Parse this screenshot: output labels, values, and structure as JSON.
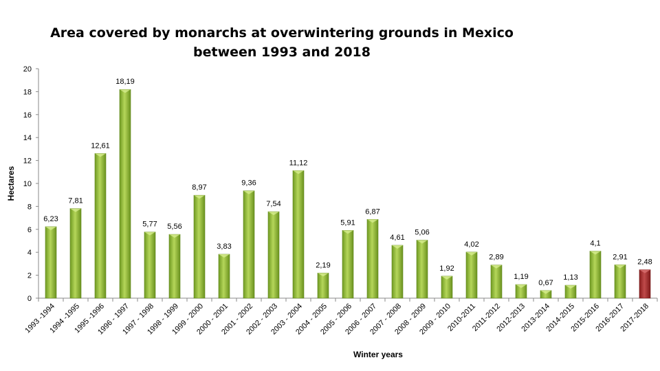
{
  "chart_data": {
    "type": "bar",
    "title": [
      "Area covered by monarchs at overwintering grounds in Mexico",
      "between 1993 and 2018"
    ],
    "xlabel": "Winter years",
    "ylabel": "Hectares",
    "ylim": [
      0,
      20
    ],
    "yticks": [
      0,
      2,
      4,
      6,
      8,
      10,
      12,
      14,
      16,
      18,
      20
    ],
    "grid": false,
    "categories": [
      "1993 -1994",
      "1994 -1995",
      "1995 -1996",
      "1996 - 1997",
      "1997 - 1998",
      "1998 - 1999",
      "1999 - 2000",
      "2000 - 2001",
      "2001 - 2002",
      "2002 - 2003",
      "2003 - 2004",
      "2004 - 2005",
      "2005 - 2006",
      "2006 - 2007",
      "2007 - 2008",
      "2008 - 2009",
      "2009 - 2010",
      "2010-2011",
      "2011-2012",
      "2012-2013",
      "2013-2014",
      "2014-2015",
      "2015-2016",
      "2016-2017",
      "2017-2018"
    ],
    "values": [
      6.23,
      7.81,
      12.61,
      18.19,
      5.77,
      5.56,
      8.97,
      3.83,
      9.36,
      7.54,
      11.12,
      2.19,
      5.91,
      6.87,
      4.61,
      5.06,
      1.92,
      4.02,
      2.89,
      1.19,
      0.67,
      1.13,
      4.1,
      2.91,
      2.48
    ],
    "data_labels": [
      "6,23",
      "7,81",
      "12,61",
      "18,19",
      "5,77",
      "5,56",
      "8,97",
      "3,83",
      "9,36",
      "7,54",
      "11,12",
      "2,19",
      "5,91",
      "6,87",
      "4,61",
      "5,06",
      "1,92",
      "4,02",
      "2,89",
      "1,19",
      "0,67",
      "1,13",
      "4,1",
      "2,91",
      "2,48"
    ],
    "colors": {
      "bar": "#8db33a",
      "highlight": "#a52a2a"
    },
    "highlight_index": 24
  }
}
